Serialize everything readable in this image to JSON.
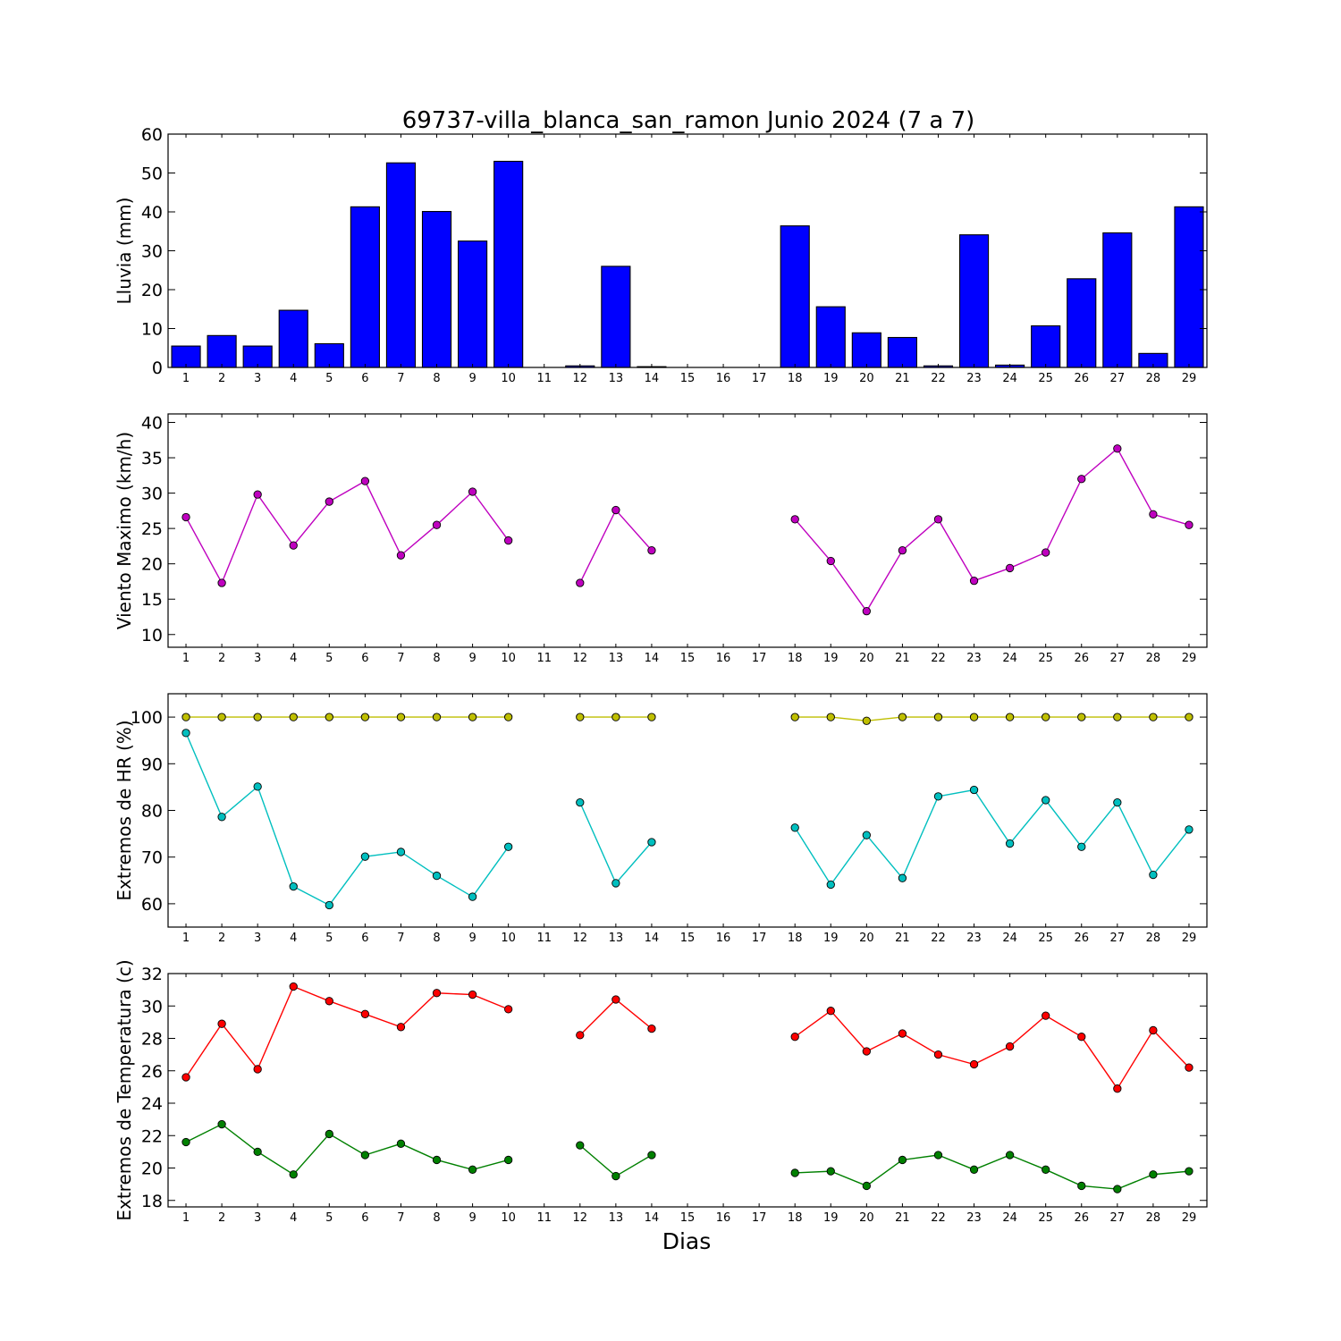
{
  "title": "69737-villa_blanca_san_ramon Junio 2024  (7 a 7)",
  "xlabel": "Dias",
  "colors": {
    "rain": "#0000ff",
    "wind": "#bf00bf",
    "hr_max": "#bfbf00",
    "hr_min": "#00bfbf",
    "temp_max": "#ff0000",
    "temp_min": "#008000"
  },
  "chart_data": [
    {
      "type": "bar",
      "ylabel": "Lluvia (mm)",
      "ylim": [
        0,
        60
      ],
      "yticks": [
        0,
        10,
        20,
        30,
        40,
        50,
        60
      ],
      "categories": [
        1,
        2,
        3,
        4,
        5,
        6,
        7,
        8,
        9,
        10,
        11,
        12,
        13,
        14,
        15,
        16,
        17,
        18,
        19,
        20,
        21,
        22,
        23,
        24,
        25,
        26,
        27,
        28,
        29
      ],
      "series": [
        {
          "color_key": "rain",
          "values": [
            5.5,
            8.2,
            5.5,
            14.7,
            6.1,
            41.3,
            52.6,
            40.1,
            32.5,
            53.0,
            0,
            0.4,
            26.0,
            0.2,
            0,
            0,
            0,
            36.4,
            15.6,
            8.9,
            7.7,
            0.4,
            34.1,
            0.6,
            10.7,
            22.8,
            34.6,
            3.6,
            41.3
          ]
        }
      ]
    },
    {
      "type": "line",
      "ylabel": "Viento Maximo (km/h)",
      "ylim": [
        8.2,
        41.2
      ],
      "yticks": [
        10,
        15,
        20,
        25,
        30,
        35,
        40
      ],
      "x": [
        1,
        2,
        3,
        4,
        5,
        6,
        7,
        8,
        9,
        10,
        11,
        12,
        13,
        14,
        15,
        16,
        17,
        18,
        19,
        20,
        21,
        22,
        23,
        24,
        25,
        26,
        27,
        28,
        29
      ],
      "series": [
        {
          "color_key": "wind",
          "values": [
            26.6,
            17.3,
            29.8,
            22.6,
            28.8,
            31.7,
            21.2,
            25.5,
            30.2,
            23.3,
            null,
            17.3,
            27.6,
            21.9,
            null,
            null,
            null,
            26.3,
            20.4,
            13.3,
            21.9,
            26.3,
            17.6,
            19.4,
            21.6,
            32.0,
            36.3,
            27.0,
            25.5
          ]
        }
      ]
    },
    {
      "type": "line",
      "ylabel": "Extremos de HR (%)",
      "ylim": [
        55,
        105
      ],
      "yticks": [
        60,
        70,
        80,
        90,
        100
      ],
      "x": [
        1,
        2,
        3,
        4,
        5,
        6,
        7,
        8,
        9,
        10,
        11,
        12,
        13,
        14,
        15,
        16,
        17,
        18,
        19,
        20,
        21,
        22,
        23,
        24,
        25,
        26,
        27,
        28,
        29
      ],
      "series": [
        {
          "color_key": "hr_max",
          "values": [
            100,
            100,
            100,
            100,
            100,
            100,
            100,
            100,
            100,
            100,
            null,
            100,
            100,
            100,
            null,
            null,
            null,
            100,
            100,
            99.2,
            100,
            100,
            100,
            100,
            100,
            100,
            100,
            100,
            100
          ]
        },
        {
          "color_key": "hr_min",
          "values": [
            96.6,
            78.6,
            85.1,
            63.7,
            59.7,
            70.1,
            71.1,
            66.0,
            61.5,
            72.2,
            null,
            81.7,
            64.4,
            73.2,
            null,
            null,
            null,
            76.3,
            64.1,
            74.7,
            65.5,
            83.0,
            84.4,
            72.9,
            82.2,
            72.2,
            81.7,
            66.2,
            75.9
          ]
        }
      ]
    },
    {
      "type": "line",
      "ylabel": "Extremos de Temperatura (c)",
      "ylim": [
        17.6,
        32.0
      ],
      "yticks": [
        18,
        20,
        22,
        24,
        26,
        28,
        30,
        32
      ],
      "x": [
        1,
        2,
        3,
        4,
        5,
        6,
        7,
        8,
        9,
        10,
        11,
        12,
        13,
        14,
        15,
        16,
        17,
        18,
        19,
        20,
        21,
        22,
        23,
        24,
        25,
        26,
        27,
        28,
        29
      ],
      "series": [
        {
          "color_key": "temp_max",
          "values": [
            25.6,
            28.9,
            26.1,
            31.2,
            30.3,
            29.5,
            28.7,
            30.8,
            30.7,
            29.8,
            null,
            28.2,
            30.4,
            28.6,
            null,
            null,
            null,
            28.1,
            29.7,
            27.2,
            28.3,
            27.0,
            26.4,
            27.5,
            29.4,
            28.1,
            24.9,
            28.5,
            26.2
          ]
        },
        {
          "color_key": "temp_min",
          "values": [
            21.6,
            22.7,
            21.0,
            19.6,
            22.1,
            20.8,
            21.5,
            20.5,
            19.9,
            20.5,
            null,
            21.4,
            19.5,
            20.8,
            null,
            null,
            null,
            19.7,
            19.8,
            18.9,
            20.5,
            20.8,
            19.9,
            20.8,
            19.9,
            18.9,
            18.7,
            19.6,
            19.8
          ]
        }
      ]
    }
  ]
}
